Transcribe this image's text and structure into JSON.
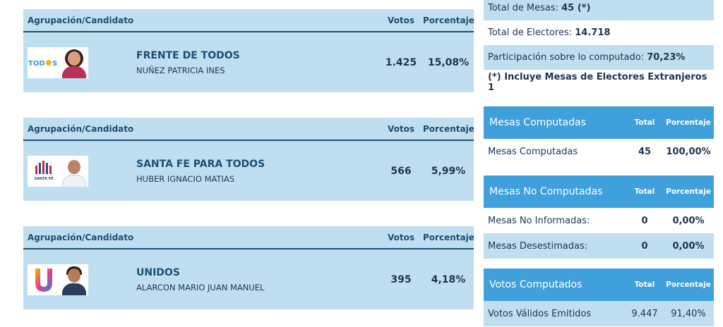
{
  "header": {
    "group_label": "Agrupación/Candidato",
    "votes_label": "Votos",
    "pct_label": "Porcentaje"
  },
  "candidates": [
    {
      "party": "FRENTE DE TODOS",
      "candidate": "NUÑEZ PATRICIA INES",
      "votes": "1.425",
      "pct": "15,08%",
      "logo_text": "TODOS",
      "logo_icon": "todos-sun-logo"
    },
    {
      "party": "SANTA FE PARA TODOS",
      "candidate": "HUBER IGNACIO MATIAS",
      "votes": "566",
      "pct": "5,99%",
      "logo_text": "SANTA FE",
      "logo_icon": "bar-logo"
    },
    {
      "party": "UNIDOS",
      "candidate": "ALARCON MARIO JUAN MANUEL",
      "votes": "395",
      "pct": "4,18%",
      "logo_text": "U",
      "logo_icon": "u-logo"
    }
  ],
  "summary": {
    "mesas_label": "Total de Mesas:",
    "mesas_value": "45 (*)",
    "electores_label": "Total de Electores:",
    "electores_value": "14.718",
    "participacion_label": "Participación sobre lo computado:",
    "participacion_value": "70,23%",
    "note": "(*) Incluye Mesas de Electores Extranjeros 1"
  },
  "mesas_computadas": {
    "title": "Mesas Computadas",
    "total_label": "Total",
    "pct_label": "Porcentaje",
    "rows": [
      {
        "label": "Mesas Computadas",
        "total": "45",
        "pct": "100,00%"
      }
    ]
  },
  "mesas_no_computadas": {
    "title": "Mesas No Computadas",
    "total_label": "Total",
    "pct_label": "Porcentaje",
    "rows": [
      {
        "label": "Mesas No Informadas:",
        "total": "0",
        "pct": "0,00%"
      },
      {
        "label": "Mesas Desestimadas:",
        "total": "0",
        "pct": "0,00%"
      }
    ]
  },
  "votos_computados": {
    "title": "Votos Computados",
    "total_label": "Total",
    "pct_label": "Porcentaje",
    "rows": [
      {
        "label": "Votos Válidos Emitidos",
        "total": "9.447",
        "pct": "91,40%"
      }
    ]
  },
  "colors": {
    "header_blue": "#3fa0dc",
    "light_blue": "#bfdff0",
    "dark_text": "#1b4f72"
  }
}
